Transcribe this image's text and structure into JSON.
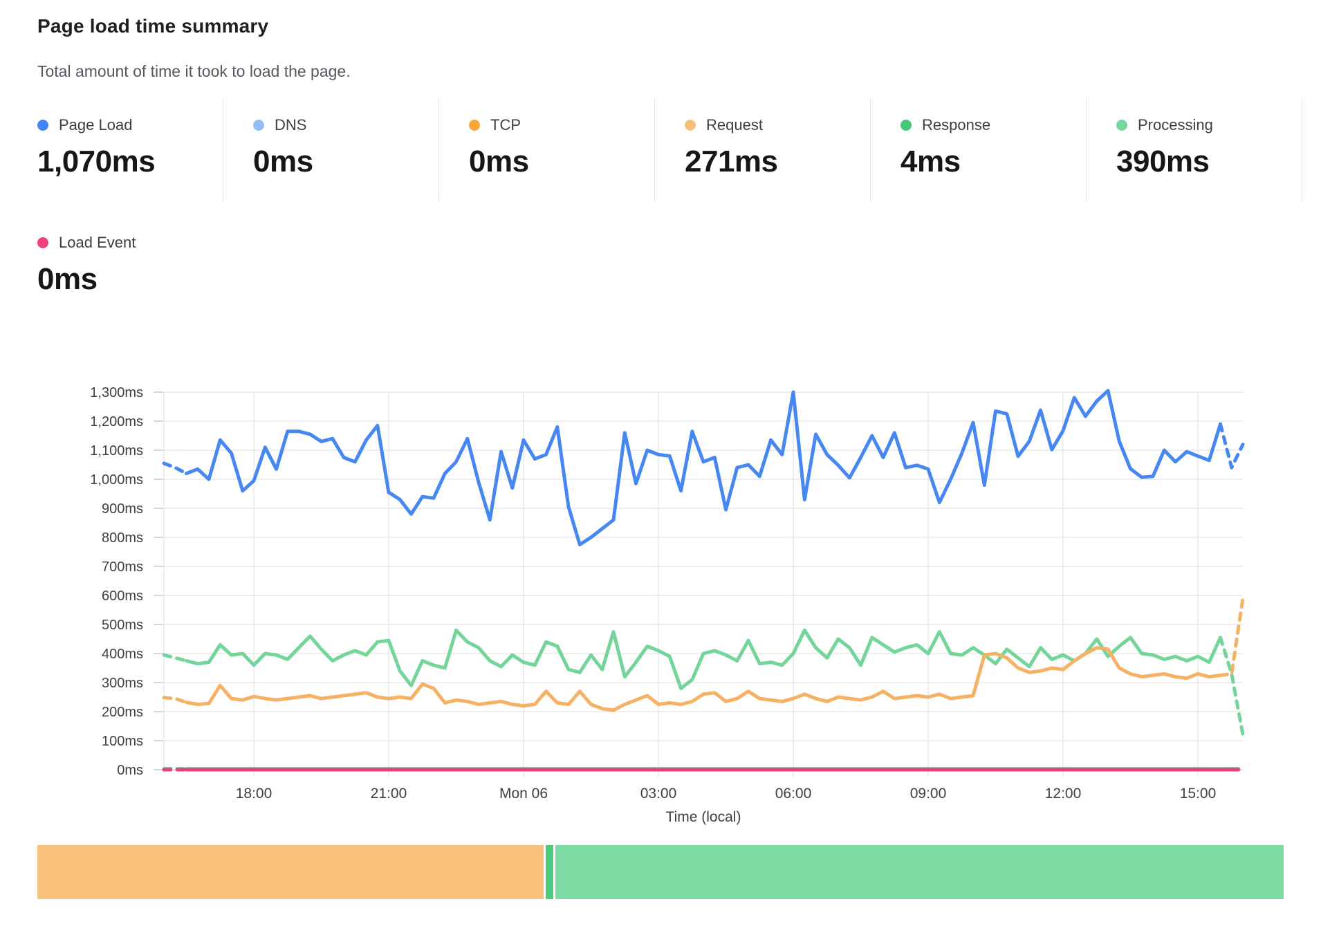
{
  "header": {
    "title": "Page load time summary",
    "subtitle": "Total amount of time it took to load the page."
  },
  "stats": [
    {
      "label": "Page Load",
      "value": "1,070ms",
      "color": "#4285f4"
    },
    {
      "label": "DNS",
      "value": "0ms",
      "color": "#92bdf9"
    },
    {
      "label": "TCP",
      "value": "0ms",
      "color": "#f6a63b"
    },
    {
      "label": "Request",
      "value": "271ms",
      "color": "#f7c078"
    },
    {
      "label": "Response",
      "value": "4ms",
      "color": "#41c878"
    },
    {
      "label": "Processing",
      "value": "390ms",
      "color": "#74d79c"
    }
  ],
  "stats_row2": {
    "label": "Load Event",
    "value": "0ms",
    "color": "#f1417f"
  },
  "chart_data": {
    "type": "line",
    "units": "ms",
    "ylim": [
      0,
      1300
    ],
    "grid": true,
    "x_axis_title": "Time (local)",
    "x_interval_minutes": 15,
    "x_span": "Sun 16:00 through Mon 16:00 (local)",
    "n_points": 97,
    "y_tick_labels": [
      "0ms",
      "100ms",
      "200ms",
      "300ms",
      "400ms",
      "500ms",
      "600ms",
      "700ms",
      "800ms",
      "900ms",
      "1,000ms",
      "1,100ms",
      "1,200ms",
      "1,300ms"
    ],
    "x_ticks": [
      {
        "label": "18:00",
        "index": 8
      },
      {
        "label": "21:00",
        "index": 20
      },
      {
        "label": "Mon 06",
        "index": 32
      },
      {
        "label": "03:00",
        "index": 44
      },
      {
        "label": "06:00",
        "index": 56
      },
      {
        "label": "09:00",
        "index": 68
      },
      {
        "label": "12:00",
        "index": 80
      },
      {
        "label": "15:00",
        "index": 92
      }
    ],
    "grid_color": "#e8e8e8",
    "tick_color": "#c7cace",
    "label_color": "#3c4043",
    "series": [
      {
        "name": "DNS",
        "color": "#92bdf9",
        "width": 3,
        "constant": 0,
        "dash_head": 2,
        "dash_tail": 1
      },
      {
        "name": "TCP",
        "color": "#f6a63b",
        "width": 3,
        "constant": 0,
        "dash_head": 2,
        "dash_tail": 1
      },
      {
        "name": "Response",
        "color": "#4cc97f",
        "width": 4,
        "constant": 4,
        "dash_head": 2,
        "dash_tail": 1
      },
      {
        "name": "Processing",
        "color": "#74d59a",
        "width": 5,
        "dash_head": 2,
        "dash_tail": 2,
        "values": [
          395,
          385,
          375,
          365,
          370,
          430,
          395,
          400,
          360,
          400,
          395,
          380,
          420,
          460,
          415,
          375,
          395,
          410,
          395,
          440,
          445,
          340,
          290,
          375,
          360,
          350,
          480,
          440,
          420,
          375,
          355,
          395,
          370,
          360,
          440,
          425,
          345,
          335,
          395,
          345,
          475,
          320,
          370,
          425,
          410,
          390,
          280,
          310,
          400,
          410,
          395,
          375,
          445,
          365,
          370,
          360,
          400,
          480,
          420,
          385,
          450,
          420,
          360,
          455,
          430,
          405,
          420,
          430,
          400,
          475,
          400,
          395,
          420,
          395,
          365,
          415,
          385,
          355,
          420,
          380,
          395,
          375,
          400,
          450,
          390,
          425,
          455,
          400,
          395,
          380,
          390,
          375,
          390,
          370,
          455,
          330,
          120
        ]
      },
      {
        "name": "Request",
        "color": "#f5b264",
        "width": 5,
        "dash_head": 2,
        "dash_tail": 2,
        "values": [
          248,
          245,
          232,
          225,
          228,
          290,
          245,
          240,
          252,
          245,
          240,
          245,
          250,
          255,
          245,
          250,
          255,
          260,
          265,
          250,
          245,
          250,
          245,
          295,
          280,
          230,
          240,
          235,
          225,
          230,
          235,
          225,
          220,
          225,
          270,
          230,
          225,
          270,
          225,
          210,
          205,
          225,
          240,
          255,
          225,
          230,
          225,
          235,
          260,
          265,
          235,
          245,
          270,
          245,
          240,
          235,
          245,
          260,
          245,
          235,
          250,
          245,
          240,
          250,
          270,
          245,
          250,
          255,
          250,
          260,
          245,
          250,
          255,
          395,
          400,
          385,
          350,
          335,
          340,
          350,
          345,
          375,
          400,
          420,
          415,
          350,
          330,
          320,
          325,
          330,
          320,
          315,
          330,
          320,
          325,
          330,
          590
        ]
      },
      {
        "name": "Page Load",
        "color": "#4687f1",
        "width": 5,
        "dash_head": 2,
        "dash_tail": 2,
        "values": [
          1055,
          1040,
          1020,
          1035,
          1000,
          1135,
          1090,
          960,
          995,
          1110,
          1035,
          1165,
          1165,
          1155,
          1130,
          1140,
          1075,
          1060,
          1135,
          1185,
          955,
          930,
          880,
          940,
          935,
          1020,
          1060,
          1140,
          990,
          860,
          1095,
          970,
          1135,
          1070,
          1085,
          1180,
          905,
          775,
          800,
          830,
          860,
          1160,
          985,
          1100,
          1085,
          1080,
          960,
          1165,
          1060,
          1075,
          895,
          1040,
          1050,
          1010,
          1135,
          1085,
          1300,
          930,
          1155,
          1085,
          1048,
          1005,
          1075,
          1150,
          1075,
          1160,
          1040,
          1048,
          1035,
          920,
          1000,
          1090,
          1195,
          980,
          1235,
          1225,
          1079,
          1131,
          1238,
          1102,
          1167,
          1281,
          1217,
          1269,
          1305,
          1131,
          1036,
          1007,
          1010,
          1100,
          1060,
          1095,
          1080,
          1065,
          1190,
          1040,
          1120
        ]
      },
      {
        "name": "Load Event",
        "color": "#e8407f",
        "width": 5,
        "constant": 0,
        "dash_head": 2,
        "dash_tail": 1
      }
    ]
  },
  "footer_bar": {
    "segments": [
      {
        "name": "Request",
        "ms": 271,
        "color": "#f8c27c"
      },
      {
        "name": "Response",
        "ms": 4,
        "color": "#4fcb7e"
      },
      {
        "name": "Processing",
        "ms": 390,
        "color": "#7edda4"
      }
    ]
  }
}
